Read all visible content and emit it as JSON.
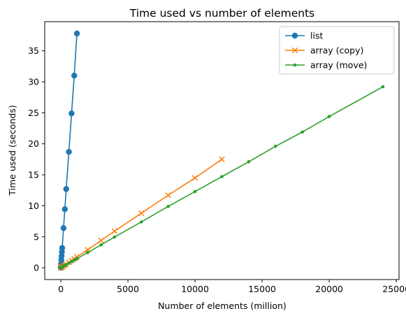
{
  "chart_data": {
    "type": "line",
    "title": "Time used vs number of elements",
    "xlabel": "Number of elements (million)",
    "ylabel": "Time used (seconds)",
    "xlim": [
      -1200,
      25200
    ],
    "ylim": [
      -1.9,
      39.7
    ],
    "xticks": [
      0,
      5000,
      10000,
      15000,
      20000,
      25000
    ],
    "xtick_labels": [
      "0",
      "5000",
      "10000",
      "15000",
      "20000",
      "25000"
    ],
    "yticks": [
      0,
      5,
      10,
      15,
      20,
      25,
      30,
      35
    ],
    "ytick_labels": [
      "0",
      "5",
      "10",
      "15",
      "20",
      "25",
      "30",
      "35"
    ],
    "grid": false,
    "legend_position": "top-right",
    "series": [
      {
        "name": "list",
        "color": "#1f77b4",
        "marker": "circle",
        "x": [
          0,
          5,
          10,
          20,
          40,
          60,
          80,
          100,
          200,
          300,
          400,
          600,
          800,
          1000,
          1200
        ],
        "y": [
          0.03,
          0.16,
          0.32,
          0.64,
          1.28,
          1.9,
          2.55,
          3.2,
          6.4,
          9.45,
          12.7,
          18.7,
          24.9,
          31.0,
          37.8
        ]
      },
      {
        "name": "array (copy)",
        "color": "#ff7f0e",
        "marker": "x",
        "x": [
          0,
          20,
          40,
          60,
          80,
          100,
          200,
          300,
          400,
          600,
          800,
          1000,
          1200,
          2000,
          3000,
          4000,
          6000,
          8000,
          10000,
          12000
        ],
        "y": [
          0.0,
          0.03,
          0.06,
          0.09,
          0.12,
          0.15,
          0.3,
          0.44,
          0.58,
          0.88,
          1.17,
          1.46,
          1.75,
          2.9,
          4.4,
          5.9,
          8.8,
          11.7,
          14.5,
          17.5
        ]
      },
      {
        "name": "array (move)",
        "color": "#2ca02c",
        "marker": "dot",
        "x": [
          0,
          20,
          40,
          60,
          80,
          100,
          200,
          300,
          400,
          600,
          800,
          1000,
          1200,
          2000,
          3000,
          4000,
          6000,
          8000,
          10000,
          12000,
          14000,
          16000,
          18000,
          20000,
          24000
        ],
        "y": [
          0.0,
          0.02,
          0.05,
          0.07,
          0.1,
          0.12,
          0.25,
          0.37,
          0.49,
          0.74,
          0.98,
          1.23,
          1.47,
          2.45,
          3.7,
          4.95,
          7.4,
          9.9,
          12.3,
          14.7,
          17.1,
          19.6,
          21.9,
          24.4,
          29.2
        ]
      }
    ]
  }
}
